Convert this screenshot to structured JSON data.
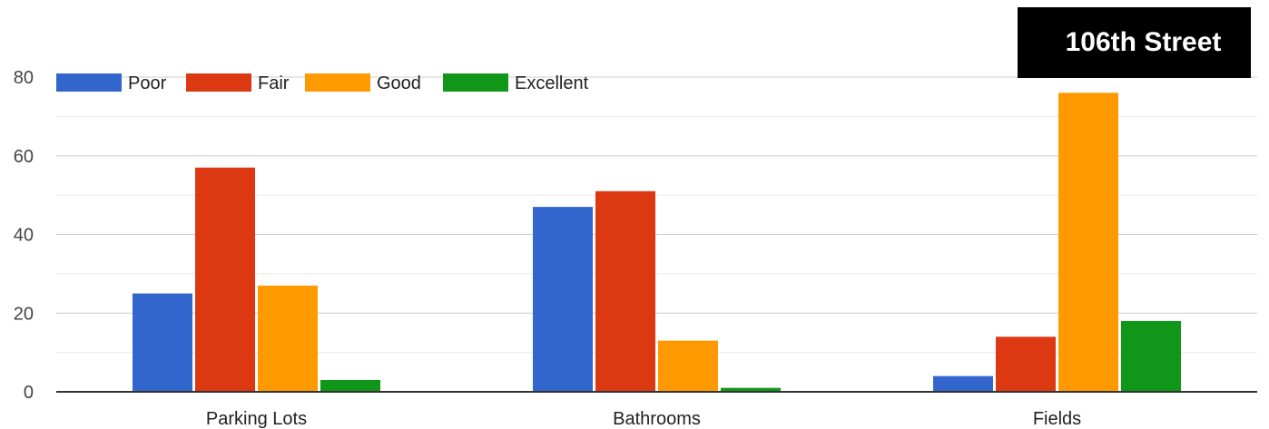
{
  "chart_data": {
    "type": "bar",
    "title": "106th Street",
    "categories": [
      "Parking Lots",
      "Bathrooms",
      "Fields"
    ],
    "series": [
      {
        "name": "Poor",
        "color": "#3366cc",
        "values": [
          25,
          47,
          4
        ]
      },
      {
        "name": "Fair",
        "color": "#dc3912",
        "values": [
          57,
          51,
          14
        ]
      },
      {
        "name": "Good",
        "color": "#ff9900",
        "values": [
          27,
          13,
          76
        ]
      },
      {
        "name": "Excellent",
        "color": "#109618",
        "values": [
          3,
          1,
          18
        ]
      }
    ],
    "yticks": [
      0,
      20,
      40,
      60,
      80
    ],
    "ylim": [
      0,
      80
    ],
    "minor_grid_step": 10,
    "xlabel": "",
    "ylabel": "",
    "legend_position": "top-left",
    "grid": true
  }
}
